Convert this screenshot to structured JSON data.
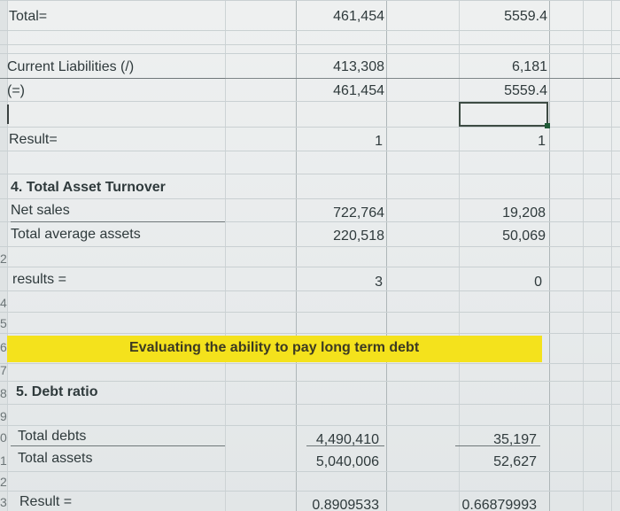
{
  "row_numbers": [
    "2",
    "4",
    "5",
    "6",
    "7",
    "8",
    "9",
    "0",
    "1",
    "2",
    "3"
  ],
  "rows": {
    "total_ratio": {
      "label": "Total=",
      "value_a": "461,454",
      "value_b": "5559.4"
    },
    "current_liabilities": {
      "label": "Current Liabilities (/)",
      "value_a": "413,308",
      "value_b": "6,181"
    },
    "equals_row": {
      "label": "(=)",
      "value_a": "461,454",
      "value_b": "5559.4"
    },
    "result": {
      "label": "Result=",
      "value_a": "1",
      "value_b": "1"
    },
    "asset_turnover_heading": {
      "label": "4. Total Asset Turnover"
    },
    "net_sales": {
      "label": "Net sales",
      "value_a": "722,764",
      "value_b": "19,208"
    },
    "avg_assets": {
      "label": "Total average assets",
      "value_a": "220,518",
      "value_b": "50,069"
    },
    "results": {
      "label": "results =",
      "value_a": "3",
      "value_b": "0"
    },
    "banner": {
      "text": "Evaluating the ability to pay long term debt",
      "color": "#f4e21c"
    },
    "debt_ratio_heading": {
      "label": "5. Debt ratio"
    },
    "total_debts": {
      "label": "Total debts",
      "value_a": "4,490,410",
      "value_b": "35,197"
    },
    "total_assets": {
      "label": "Total assets",
      "value_a": "5,040,006",
      "value_b": "52,627"
    },
    "final_result": {
      "label": "Result =",
      "value_a": "0.8909533",
      "value_b": "0.66879993"
    }
  },
  "selection": {
    "cell": "value_b",
    "row": "blank row below (=)"
  }
}
